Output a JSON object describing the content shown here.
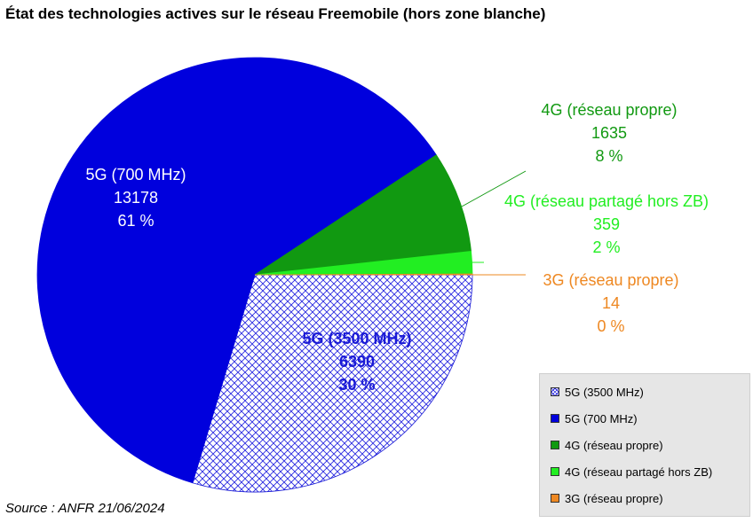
{
  "title": "État des technologies actives sur le réseau Freemobile (hors zone blanche)",
  "source": "Source : ANFR 21/06/2024",
  "colors": {
    "5g_3500": "#0000cc",
    "5g_700": "#0000dd",
    "4g_propre": "#119911",
    "4g_partage": "#22ee22",
    "3g": "#ee8822"
  },
  "chart_data": {
    "type": "pie",
    "title": "État des technologies actives sur le réseau Freemobile (hors zone blanche)",
    "slices": [
      {
        "name": "5G (3500 MHz)",
        "value": 6390,
        "percent_label": "30 %",
        "color": "#1a1ad6",
        "hatched": true
      },
      {
        "name": "5G (700 MHz)",
        "value": 13178,
        "percent_label": "61 %",
        "color": "#0000dd",
        "hatched": false
      },
      {
        "name": "4G (réseau propre)",
        "value": 1635,
        "percent_label": "8 %",
        "color": "#119911",
        "hatched": false
      },
      {
        "name": "4G (réseau partagé hors ZB)",
        "value": 359,
        "percent_label": "2 %",
        "color": "#22ee22",
        "hatched": false
      },
      {
        "name": "3G (réseau propre)",
        "value": 14,
        "percent_label": "0 %",
        "color": "#ee8822",
        "hatched": false
      }
    ],
    "label_colors": [
      "#1a1ad6",
      "#ffffff",
      "#119911",
      "#22ee22",
      "#ee8822"
    ],
    "legend_position": "bottom-right"
  }
}
